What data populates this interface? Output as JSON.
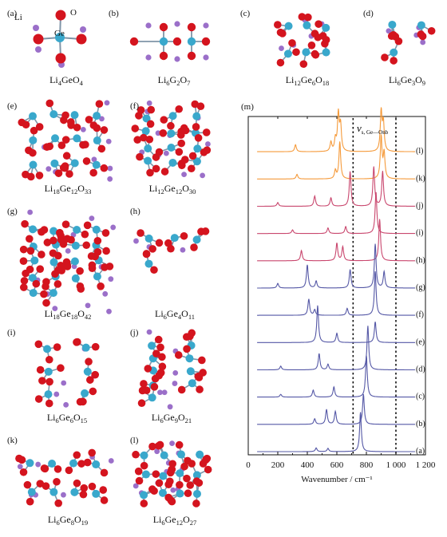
{
  "structures": [
    {
      "tag": "(a)",
      "formula": [
        [
          "Li",
          ""
        ],
        [
          "4",
          "sub"
        ],
        [
          "GeO",
          ""
        ],
        [
          "4",
          "sub"
        ]
      ]
    },
    {
      "tag": "(b)",
      "formula": [
        [
          "Li",
          ""
        ],
        [
          "6",
          "sub"
        ],
        [
          "G",
          ""
        ],
        [
          "2",
          "sub"
        ],
        [
          "O",
          ""
        ],
        [
          "7",
          "sub"
        ]
      ]
    },
    {
      "tag": "(c)",
      "formula": [
        [
          "Li",
          ""
        ],
        [
          "12",
          "sub"
        ],
        [
          "Ge",
          ""
        ],
        [
          "6",
          "sub"
        ],
        [
          "O",
          ""
        ],
        [
          "18",
          "sub"
        ]
      ]
    },
    {
      "tag": "(d)",
      "formula": [
        [
          "Li",
          ""
        ],
        [
          "6",
          "sub"
        ],
        [
          "Ge",
          ""
        ],
        [
          "3",
          "sub"
        ],
        [
          "O",
          ""
        ],
        [
          "9",
          "sub"
        ]
      ]
    },
    {
      "tag": "(e)",
      "formula": [
        [
          "Li",
          ""
        ],
        [
          "18",
          "sub"
        ],
        [
          "Ge",
          ""
        ],
        [
          "12",
          "sub"
        ],
        [
          "O",
          ""
        ],
        [
          "33",
          "sub"
        ]
      ]
    },
    {
      "tag": "(f)",
      "formula": [
        [
          "Li",
          ""
        ],
        [
          "12",
          "sub"
        ],
        [
          "Ge",
          ""
        ],
        [
          "12",
          "sub"
        ],
        [
          "O",
          ""
        ],
        [
          "30",
          "sub"
        ]
      ]
    },
    {
      "tag": "(g)",
      "formula": [
        [
          "Li",
          ""
        ],
        [
          "18",
          "sub"
        ],
        [
          "Ge",
          ""
        ],
        [
          "18",
          "sub"
        ],
        [
          "O",
          ""
        ],
        [
          "42",
          "sub"
        ]
      ]
    },
    {
      "tag": "(h)",
      "formula": [
        [
          "Li",
          ""
        ],
        [
          "6",
          "sub"
        ],
        [
          "Ge",
          ""
        ],
        [
          "4",
          "sub"
        ],
        [
          "O",
          ""
        ],
        [
          "11",
          "sub"
        ]
      ]
    },
    {
      "tag": "(i)",
      "formula": [
        [
          "Li",
          ""
        ],
        [
          "6",
          "sub"
        ],
        [
          "Ge",
          ""
        ],
        [
          "6",
          "sub"
        ],
        [
          "O",
          ""
        ],
        [
          "15",
          "sub"
        ]
      ]
    },
    {
      "tag": "(j)",
      "formula": [
        [
          "Li",
          ""
        ],
        [
          "6",
          "sub"
        ],
        [
          "Ge",
          ""
        ],
        [
          "9",
          "sub"
        ],
        [
          "O",
          ""
        ],
        [
          "21",
          "sub"
        ]
      ]
    },
    {
      "tag": "(k)",
      "formula": [
        [
          "Li",
          ""
        ],
        [
          "6",
          "sub"
        ],
        [
          "Ge",
          ""
        ],
        [
          "8",
          "sub"
        ],
        [
          "O",
          ""
        ],
        [
          "19",
          "sub"
        ]
      ]
    },
    {
      "tag": "(l)",
      "formula": [
        [
          "Li",
          ""
        ],
        [
          "6",
          "sub"
        ],
        [
          "Ge",
          ""
        ],
        [
          "12",
          "sub"
        ],
        [
          "O",
          ""
        ],
        [
          "27",
          "sub"
        ]
      ]
    }
  ],
  "atom_labels": {
    "li": "Li",
    "o": "O",
    "ge": "Ge"
  },
  "atom_colors": {
    "li": "#9b6fc9",
    "o": "#d4141e",
    "ge": "#39a8cc",
    "bond": "#7f95a8"
  },
  "chart_data": {
    "type": "line",
    "panel_tag": "(m)",
    "xlabel": "Wavenumber / cm⁻¹",
    "ylabel": "",
    "xlim": [
      0,
      1200
    ],
    "xticks": [
      0,
      200,
      400,
      600,
      800,
      1000,
      1200
    ],
    "xtick_labels": [
      "0",
      "200",
      "400",
      "600",
      "800",
      "1 000",
      "1 200"
    ],
    "band_label": {
      "main": "ν",
      "subscript": "s, Ge—Onb"
    },
    "reference_lines": [
      710,
      1000
    ],
    "series": [
      {
        "name": "(l)",
        "color": "#f59a3a",
        "peaks": [
          [
            320,
            0.15
          ],
          [
            560,
            0.2
          ],
          [
            590,
            0.25
          ],
          [
            610,
            0.8
          ],
          [
            625,
            0.55
          ],
          [
            900,
            0.85
          ],
          [
            915,
            0.6
          ]
        ]
      },
      {
        "name": "(k)",
        "color": "#f59a3a",
        "peaks": [
          [
            330,
            0.1
          ],
          [
            590,
            0.18
          ],
          [
            620,
            0.8
          ],
          [
            900,
            0.9
          ],
          [
            920,
            0.55
          ]
        ]
      },
      {
        "name": "(j)",
        "color": "#c9476e",
        "peaks": [
          [
            200,
            0.08
          ],
          [
            450,
            0.22
          ],
          [
            560,
            0.18
          ],
          [
            690,
            0.75
          ],
          [
            850,
            0.85
          ],
          [
            910,
            0.75
          ]
        ]
      },
      {
        "name": "(i)",
        "color": "#c9476e",
        "peaks": [
          [
            300,
            0.08
          ],
          [
            540,
            0.12
          ],
          [
            660,
            0.15
          ],
          [
            865,
            0.9
          ]
        ]
      },
      {
        "name": "(h)",
        "color": "#c9476e",
        "peaks": [
          [
            360,
            0.22
          ],
          [
            600,
            0.38
          ],
          [
            640,
            0.3
          ],
          [
            890,
            0.9
          ]
        ]
      },
      {
        "name": "(g)",
        "color": "#5558a6",
        "peaks": [
          [
            200,
            0.1
          ],
          [
            400,
            0.5
          ],
          [
            460,
            0.15
          ],
          [
            690,
            0.4
          ],
          [
            860,
            0.95
          ],
          [
            920,
            0.35
          ]
        ]
      },
      {
        "name": "(f)",
        "color": "#5558a6",
        "peaks": [
          [
            410,
            0.35
          ],
          [
            450,
            0.12
          ],
          [
            670,
            0.15
          ],
          [
            860,
            0.95
          ]
        ]
      },
      {
        "name": "(e)",
        "color": "#5558a6",
        "peaks": [
          [
            470,
            0.8
          ],
          [
            600,
            0.2
          ],
          [
            860,
            0.45
          ]
        ]
      },
      {
        "name": "(d)",
        "color": "#5558a6",
        "peaks": [
          [
            220,
            0.08
          ],
          [
            480,
            0.35
          ],
          [
            540,
            0.12
          ],
          [
            810,
            0.95
          ]
        ]
      },
      {
        "name": "(c)",
        "color": "#5558a6",
        "peaks": [
          [
            220,
            0.06
          ],
          [
            440,
            0.15
          ],
          [
            580,
            0.22
          ],
          [
            800,
            0.9
          ]
        ]
      },
      {
        "name": "(b)",
        "color": "#5558a6",
        "peaks": [
          [
            450,
            0.12
          ],
          [
            530,
            0.32
          ],
          [
            590,
            0.28
          ],
          [
            780,
            0.65
          ]
        ]
      },
      {
        "name": "(a)",
        "color": "#5558a6",
        "peaks": [
          [
            460,
            0.08
          ],
          [
            540,
            0.07
          ],
          [
            760,
            0.85
          ]
        ]
      }
    ]
  }
}
